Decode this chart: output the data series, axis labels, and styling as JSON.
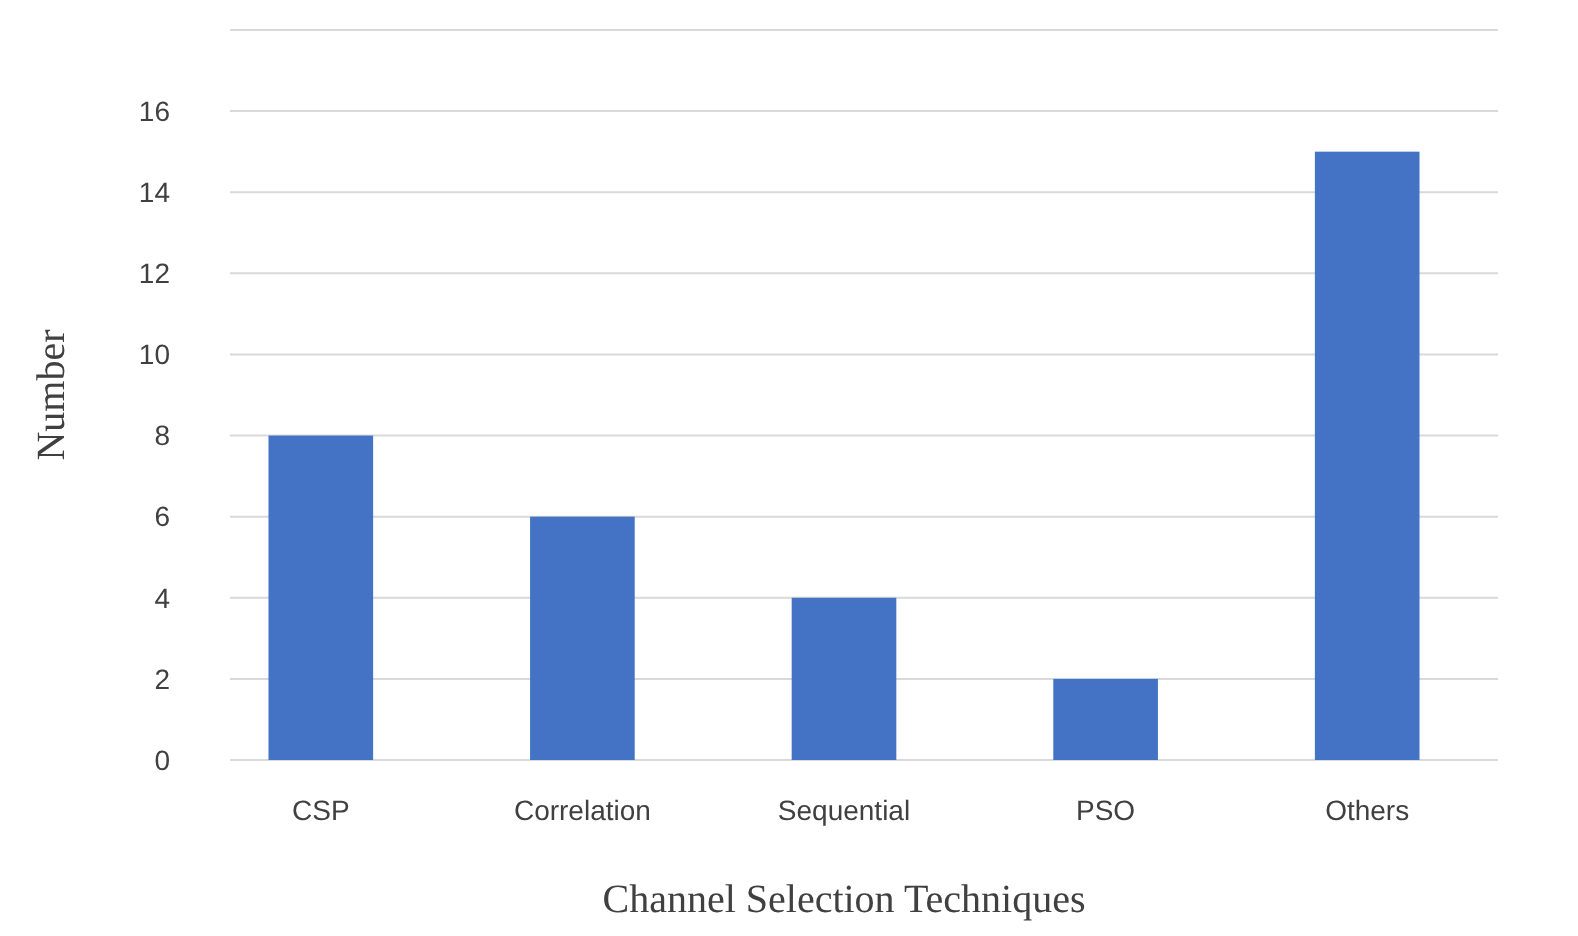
{
  "chart_data": {
    "type": "bar",
    "xlabel": "Channel Selection Techniques",
    "ylabel": "Number",
    "categories": [
      "CSP",
      "Correlation",
      "Sequential",
      "PSO",
      "Others"
    ],
    "values": [
      8,
      6,
      4,
      2,
      15
    ],
    "color": "#4472c4",
    "ylim": [
      0,
      18
    ],
    "yticks": [
      0,
      2,
      4,
      6,
      8,
      10,
      12,
      14,
      16,
      {
        "value": 18,
        "label": null
      }
    ],
    "grid": "y"
  }
}
